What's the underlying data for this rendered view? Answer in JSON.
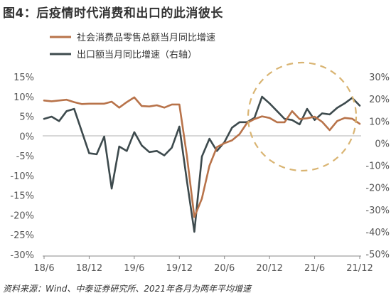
{
  "title": "图4：后疫情时代消费和出口的此消彼长",
  "source": "资料来源：Wind、中泰证券研究所、2021年各月为两年平均增速",
  "colors": {
    "consumption": "#b8734a",
    "exports": "#3d4a4d",
    "highlight_circle": "#d9b472",
    "axis": "#888888",
    "grid": "#9a9a9a"
  },
  "chart_data": {
    "type": "line",
    "title": "图4：后疫情时代消费和出口的此消彼长",
    "x_ticks": [
      "18/6",
      "18/12",
      "19/6",
      "19/12",
      "20/6",
      "20/12",
      "21/6",
      "21/12"
    ],
    "y_left": {
      "ticks": [
        "15%",
        "10%",
        "5%",
        "0%",
        "-5%",
        "-10%",
        "-15%",
        "-20%",
        "-25%",
        "-30%"
      ],
      "range": [
        -30,
        15
      ],
      "unit": "%"
    },
    "y_right": {
      "ticks": [
        "30%",
        "20%",
        "10%",
        "0%",
        "-10%",
        "-20%",
        "-30%",
        "-40%",
        "-50%"
      ],
      "range": [
        -50,
        30
      ],
      "unit": "%"
    },
    "grid": false,
    "legend_position": "top-left",
    "series": [
      {
        "name": "社会消费品零售总额当月同比增速",
        "axis": "left",
        "color": "#b8734a",
        "x": [
          "2018-06",
          "2018-07",
          "2018-08",
          "2018-09",
          "2018-10",
          "2018-11",
          "2018-12",
          "2019-01",
          "2019-02",
          "2019-03",
          "2019-04",
          "2019-05",
          "2019-06",
          "2019-07",
          "2019-08",
          "2019-09",
          "2019-10",
          "2019-11",
          "2019-12",
          "2020-01",
          "2020-02",
          "2020-03",
          "2020-04",
          "2020-05",
          "2020-06",
          "2020-07",
          "2020-08",
          "2020-09",
          "2020-10",
          "2020-11",
          "2020-12",
          "2021-01",
          "2021-02",
          "2021-03",
          "2021-04",
          "2021-05",
          "2021-06",
          "2021-07",
          "2021-08",
          "2021-09",
          "2021-10",
          "2021-11",
          "2021-12"
        ],
        "values": [
          9.0,
          8.8,
          9.0,
          9.2,
          8.6,
          8.1,
          8.2,
          8.2,
          8.2,
          8.7,
          7.2,
          8.6,
          9.8,
          7.6,
          7.5,
          7.8,
          7.2,
          8.0,
          8.0,
          -5.0,
          -20.5,
          -15.8,
          -7.5,
          -2.8,
          -1.8,
          -1.1,
          0.5,
          3.3,
          4.3,
          5.0,
          4.6,
          3.5,
          3.5,
          6.3,
          4.3,
          4.5,
          4.9,
          3.6,
          1.5,
          3.8,
          4.6,
          4.4,
          3.1
        ]
      },
      {
        "name": "出口额当月同比增速（右轴）",
        "axis": "right",
        "color": "#3d4a4d",
        "x": [
          "2018-06",
          "2018-07",
          "2018-08",
          "2018-09",
          "2018-10",
          "2018-11",
          "2018-12",
          "2019-01",
          "2019-02",
          "2019-03",
          "2019-04",
          "2019-05",
          "2019-06",
          "2019-07",
          "2019-08",
          "2019-09",
          "2019-10",
          "2019-11",
          "2019-12",
          "2020-01",
          "2020-02",
          "2020-03",
          "2020-04",
          "2020-05",
          "2020-06",
          "2020-07",
          "2020-08",
          "2020-09",
          "2020-10",
          "2020-11",
          "2020-12",
          "2021-01",
          "2021-02",
          "2021-03",
          "2021-04",
          "2021-05",
          "2021-06",
          "2021-07",
          "2021-08",
          "2021-09",
          "2021-10",
          "2021-11",
          "2021-12"
        ],
        "values": [
          11,
          12,
          10,
          14.5,
          15.5,
          5.5,
          -4.5,
          -5,
          3,
          -20.5,
          -1.5,
          -3.5,
          5,
          -1,
          -4,
          -3.5,
          -5.5,
          -2,
          7.5,
          -17,
          -40,
          -6,
          2,
          -3.5,
          0.5,
          7,
          9.5,
          9.5,
          11.5,
          21,
          18,
          14.5,
          11,
          10.5,
          8.5,
          15.5,
          10.5,
          13.5,
          13,
          16,
          18,
          20.5,
          17
        ]
      }
    ],
    "annotations": [
      {
        "type": "dashed-circle",
        "description": "highlight 2020/12–2021/12 region"
      }
    ]
  }
}
